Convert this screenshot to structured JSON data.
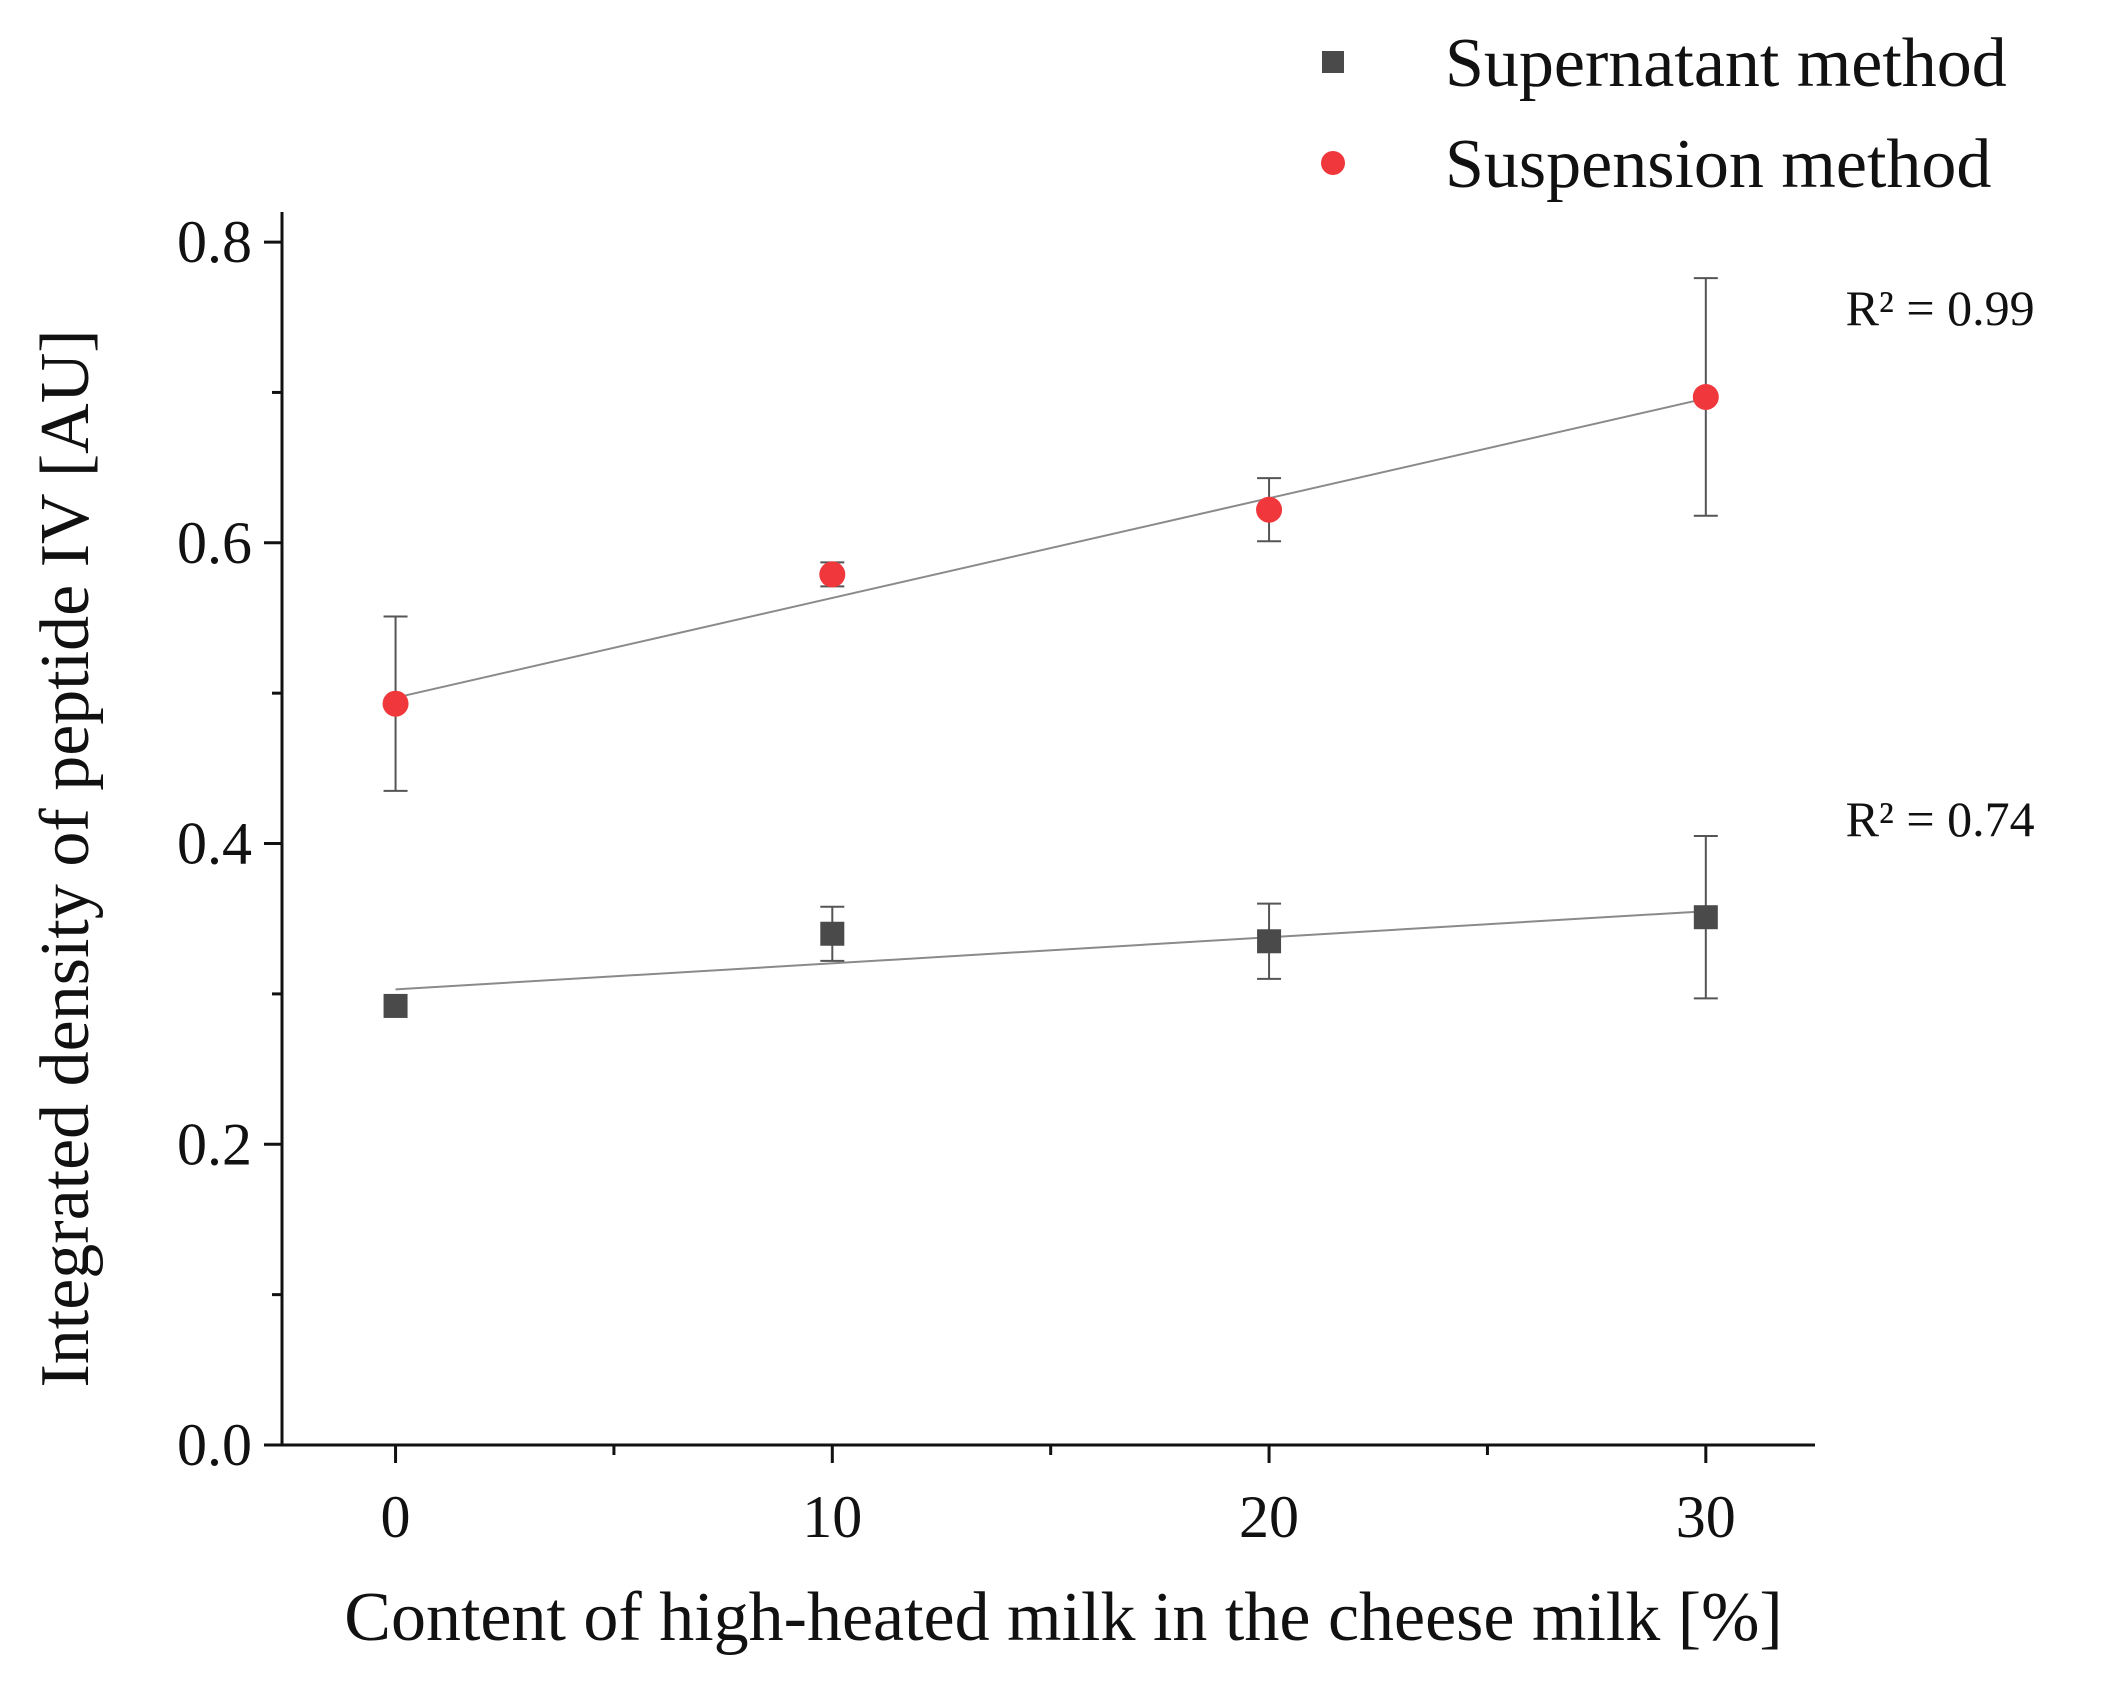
{
  "chart_data": {
    "type": "scatter",
    "title": "",
    "xlabel": "Content of high-heated milk in the cheese milk [%]",
    "ylabel": "Integrated density of peptide IV [AU]",
    "xlim": [
      -2.6,
      32.5
    ],
    "ylim": [
      0.0,
      0.82
    ],
    "x_ticks": [
      0,
      10,
      20,
      30
    ],
    "x_tick_labels": [
      "0",
      "10",
      "20",
      "30"
    ],
    "x_minor_ticks": [
      5,
      15,
      25
    ],
    "y_ticks": [
      0.0,
      0.2,
      0.4,
      0.6,
      0.8
    ],
    "y_tick_labels": [
      "0.0",
      "0.2",
      "0.4",
      "0.6",
      "0.8"
    ],
    "y_minor_ticks": [
      0.1,
      0.3,
      0.5,
      0.7
    ],
    "grid": false,
    "legend_position": "top-right",
    "series": [
      {
        "name": "Supernatant method",
        "marker": "square",
        "color": "#4a4a4a",
        "x": [
          0,
          10,
          20,
          30
        ],
        "y": [
          0.292,
          0.34,
          0.335,
          0.351
        ],
        "err": [
          0.0,
          0.018,
          0.025,
          0.054
        ],
        "fit": {
          "x": [
            0,
            30
          ],
          "y": [
            0.303,
            0.355
          ]
        },
        "r2_label": "R² = 0.74",
        "r2_position": {
          "x": 33.2,
          "y": 0.405
        }
      },
      {
        "name": "Suspension method",
        "marker": "circle",
        "color": "#f0383c",
        "x": [
          0,
          10,
          20,
          30
        ],
        "y": [
          0.493,
          0.579,
          0.622,
          0.697
        ],
        "err": [
          0.058,
          0.008,
          0.021,
          0.079
        ],
        "fit": {
          "x": [
            0,
            30
          ],
          "y": [
            0.497,
            0.696
          ]
        },
        "r2_label": "R² = 0.99",
        "r2_position": {
          "x": 33.2,
          "y": 0.745
        }
      }
    ]
  }
}
